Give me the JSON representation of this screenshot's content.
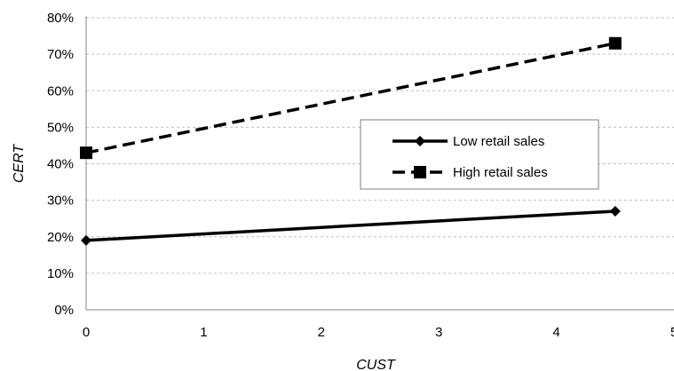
{
  "chart_data": {
    "type": "line",
    "title": "",
    "xlabel": "CUST",
    "ylabel": "CERT",
    "xlim": [
      0,
      5
    ],
    "ylim": [
      0,
      0.8
    ],
    "x_ticks": [
      0,
      1,
      2,
      3,
      4,
      5
    ],
    "x_tick_labels": [
      "0",
      "1",
      "2",
      "3",
      "4",
      "5"
    ],
    "y_ticks": [
      0,
      0.1,
      0.2,
      0.3,
      0.4,
      0.5,
      0.6,
      0.7,
      0.8
    ],
    "y_tick_labels": [
      "0%",
      "10%",
      "20%",
      "30%",
      "40%",
      "50%",
      "60%",
      "70%",
      "80%"
    ],
    "grid": "horizontal dashed",
    "legend_position": "center-right",
    "series": [
      {
        "name": "Low retail sales",
        "x": [
          0,
          4.5
        ],
        "y": [
          0.19,
          0.27
        ],
        "line_style": "solid",
        "marker": "diamond",
        "color": "#000000"
      },
      {
        "name": "High retail sales",
        "x": [
          0,
          4.5
        ],
        "y": [
          0.43,
          0.73
        ],
        "line_style": "dashed",
        "marker": "square",
        "color": "#000000"
      }
    ]
  }
}
